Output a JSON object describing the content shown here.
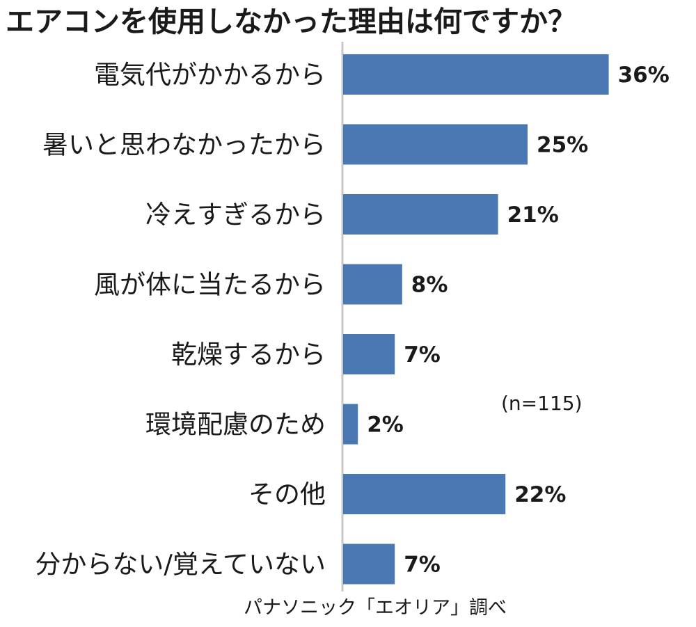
{
  "chart_data": {
    "type": "bar",
    "orientation": "horizontal",
    "title": "エアコンを使用しなかった理由は何ですか？",
    "categories": [
      "電気代がかかるから",
      "暑いと思わなかったから",
      "冷えすぎるから",
      "風が体に当たるから",
      "乾燥するから",
      "環境配慮のため",
      "その他",
      "分からない/覚えていない"
    ],
    "values": [
      36,
      25,
      21,
      8,
      7,
      2,
      22,
      7
    ],
    "value_labels": [
      "36%",
      "25%",
      "21%",
      "8%",
      "7%",
      "2%",
      "22%",
      "7%"
    ],
    "unit": "%",
    "xlim": [
      0,
      40
    ],
    "grid": false,
    "legend": "none",
    "bar_color": "#4a78b3",
    "axis_color": "#c8c8c8"
  },
  "sample_note": "(n=115)",
  "source": "パナソニック「エオリア」調べ"
}
